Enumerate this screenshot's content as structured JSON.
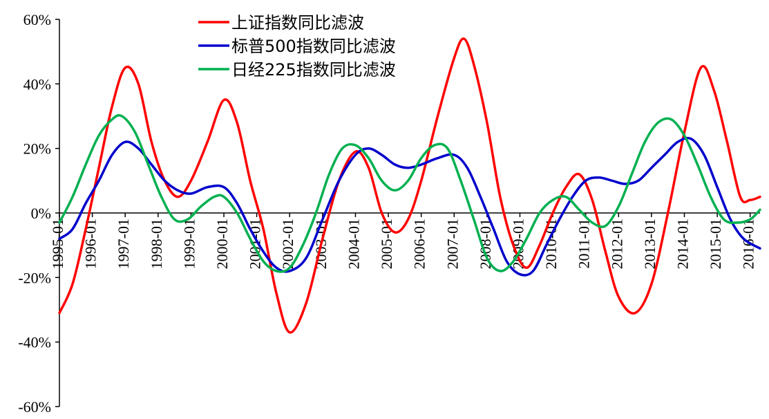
{
  "chart_data": {
    "type": "line",
    "title": "",
    "xlabel": "",
    "ylabel": "",
    "ylim": [
      -60,
      60
    ],
    "yticks": [
      -60,
      -40,
      -20,
      0,
      20,
      40,
      60
    ],
    "ytick_labels": [
      "-60%",
      "-40%",
      "-20%",
      "0%",
      "20%",
      "40%",
      "60%"
    ],
    "xlim": [
      1995.0,
      2016.3
    ],
    "xticks": [
      1995,
      1996,
      1997,
      1998,
      1999,
      2000,
      2001,
      2002,
      2003,
      2004,
      2005,
      2006,
      2007,
      2008,
      2009,
      2010,
      2011,
      2012,
      2013,
      2014,
      2015,
      2016
    ],
    "xtick_labels": [
      "1995-01",
      "1996-01",
      "1997-01",
      "1998-01",
      "1999-01",
      "2000-01",
      "2001-01",
      "2002-01",
      "2003-01",
      "2004-01",
      "2005-01",
      "2006-01",
      "2007-01",
      "2008-01",
      "2009-01",
      "2010-01",
      "2011-01",
      "2012-01",
      "2013-01",
      "2014-01",
      "2015-01",
      "2016-01"
    ],
    "grid": false,
    "legend_position": "top-center",
    "series": [
      {
        "name": "上证指数同比滤波",
        "color": "#ff0000",
        "points": [
          [
            1995.0,
            -31
          ],
          [
            1995.4,
            -22
          ],
          [
            1995.8,
            -5
          ],
          [
            1996.2,
            14
          ],
          [
            1996.6,
            33
          ],
          [
            1997.0,
            45
          ],
          [
            1997.4,
            40
          ],
          [
            1997.8,
            22
          ],
          [
            1998.2,
            10
          ],
          [
            1998.6,
            5
          ],
          [
            1999.0,
            10
          ],
          [
            1999.5,
            22
          ],
          [
            2000.0,
            35
          ],
          [
            2000.4,
            28
          ],
          [
            2000.8,
            10
          ],
          [
            2001.2,
            -5
          ],
          [
            2001.6,
            -25
          ],
          [
            2002.0,
            -37
          ],
          [
            2002.5,
            -28
          ],
          [
            2003.0,
            -8
          ],
          [
            2003.5,
            10
          ],
          [
            2004.0,
            19
          ],
          [
            2004.4,
            14
          ],
          [
            2004.8,
            0
          ],
          [
            2005.2,
            -6
          ],
          [
            2005.6,
            -2
          ],
          [
            2006.0,
            10
          ],
          [
            2006.5,
            30
          ],
          [
            2007.0,
            48
          ],
          [
            2007.3,
            54
          ],
          [
            2007.6,
            46
          ],
          [
            2008.0,
            28
          ],
          [
            2008.4,
            5
          ],
          [
            2008.8,
            -10
          ],
          [
            2009.2,
            -17
          ],
          [
            2009.6,
            -10
          ],
          [
            2010.0,
            0
          ],
          [
            2010.4,
            8
          ],
          [
            2010.8,
            12
          ],
          [
            2011.2,
            4
          ],
          [
            2011.6,
            -12
          ],
          [
            2012.0,
            -26
          ],
          [
            2012.5,
            -31
          ],
          [
            2013.0,
            -22
          ],
          [
            2013.5,
            0
          ],
          [
            2014.0,
            25
          ],
          [
            2014.5,
            45
          ],
          [
            2014.9,
            38
          ],
          [
            2015.3,
            22
          ],
          [
            2015.7,
            5
          ],
          [
            2016.0,
            4
          ],
          [
            2016.3,
            5
          ]
        ]
      },
      {
        "name": "标普500指数同比滤波",
        "color": "#0000cc",
        "points": [
          [
            1995.0,
            -8
          ],
          [
            1995.4,
            -5
          ],
          [
            1995.8,
            3
          ],
          [
            1996.2,
            10
          ],
          [
            1996.6,
            18
          ],
          [
            1997.0,
            22
          ],
          [
            1997.4,
            20
          ],
          [
            1997.8,
            15
          ],
          [
            1998.2,
            10
          ],
          [
            1998.6,
            7
          ],
          [
            1999.0,
            6
          ],
          [
            1999.5,
            8
          ],
          [
            2000.0,
            8
          ],
          [
            2000.4,
            3
          ],
          [
            2000.8,
            -5
          ],
          [
            2001.2,
            -12
          ],
          [
            2001.6,
            -17
          ],
          [
            2002.0,
            -18
          ],
          [
            2002.5,
            -14
          ],
          [
            2003.0,
            -2
          ],
          [
            2003.5,
            10
          ],
          [
            2004.0,
            18
          ],
          [
            2004.4,
            20
          ],
          [
            2004.8,
            18
          ],
          [
            2005.2,
            15
          ],
          [
            2005.6,
            14
          ],
          [
            2006.0,
            15
          ],
          [
            2006.5,
            17
          ],
          [
            2007.0,
            18
          ],
          [
            2007.4,
            14
          ],
          [
            2007.8,
            5
          ],
          [
            2008.2,
            -5
          ],
          [
            2008.6,
            -15
          ],
          [
            2009.0,
            -19
          ],
          [
            2009.4,
            -18
          ],
          [
            2009.8,
            -10
          ],
          [
            2010.2,
            -2
          ],
          [
            2010.6,
            5
          ],
          [
            2011.0,
            10
          ],
          [
            2011.4,
            11
          ],
          [
            2011.8,
            10
          ],
          [
            2012.2,
            9
          ],
          [
            2012.6,
            10
          ],
          [
            2013.0,
            14
          ],
          [
            2013.4,
            18
          ],
          [
            2013.8,
            22
          ],
          [
            2014.2,
            23
          ],
          [
            2014.6,
            18
          ],
          [
            2015.0,
            8
          ],
          [
            2015.4,
            -2
          ],
          [
            2015.8,
            -8
          ],
          [
            2016.3,
            -11
          ]
        ]
      },
      {
        "name": "日经225指数同比滤波",
        "color": "#00b050",
        "points": [
          [
            1995.0,
            -3
          ],
          [
            1995.4,
            5
          ],
          [
            1995.8,
            15
          ],
          [
            1996.2,
            24
          ],
          [
            1996.6,
            29
          ],
          [
            1996.9,
            30
          ],
          [
            1997.3,
            25
          ],
          [
            1997.7,
            15
          ],
          [
            1998.1,
            5
          ],
          [
            1998.5,
            -2
          ],
          [
            1998.9,
            -2
          ],
          [
            1999.3,
            2
          ],
          [
            1999.7,
            5
          ],
          [
            2000.0,
            5
          ],
          [
            2000.4,
            0
          ],
          [
            2000.8,
            -8
          ],
          [
            2001.2,
            -15
          ],
          [
            2001.6,
            -18
          ],
          [
            2002.0,
            -17
          ],
          [
            2002.4,
            -10
          ],
          [
            2002.8,
            0
          ],
          [
            2003.2,
            12
          ],
          [
            2003.6,
            20
          ],
          [
            2004.0,
            21
          ],
          [
            2004.4,
            17
          ],
          [
            2004.8,
            10
          ],
          [
            2005.2,
            7
          ],
          [
            2005.6,
            10
          ],
          [
            2006.0,
            17
          ],
          [
            2006.4,
            21
          ],
          [
            2006.8,
            20
          ],
          [
            2007.2,
            10
          ],
          [
            2007.6,
            -2
          ],
          [
            2008.0,
            -14
          ],
          [
            2008.4,
            -18
          ],
          [
            2008.8,
            -15
          ],
          [
            2009.2,
            -8
          ],
          [
            2009.6,
            0
          ],
          [
            2010.0,
            4
          ],
          [
            2010.4,
            5
          ],
          [
            2010.8,
            1
          ],
          [
            2011.2,
            -3
          ],
          [
            2011.6,
            -4
          ],
          [
            2012.0,
            2
          ],
          [
            2012.4,
            12
          ],
          [
            2012.8,
            22
          ],
          [
            2013.2,
            28
          ],
          [
            2013.6,
            29
          ],
          [
            2014.0,
            24
          ],
          [
            2014.4,
            15
          ],
          [
            2014.8,
            5
          ],
          [
            2015.2,
            -2
          ],
          [
            2015.6,
            -3
          ],
          [
            2016.0,
            -2
          ],
          [
            2016.3,
            1
          ]
        ]
      }
    ]
  }
}
